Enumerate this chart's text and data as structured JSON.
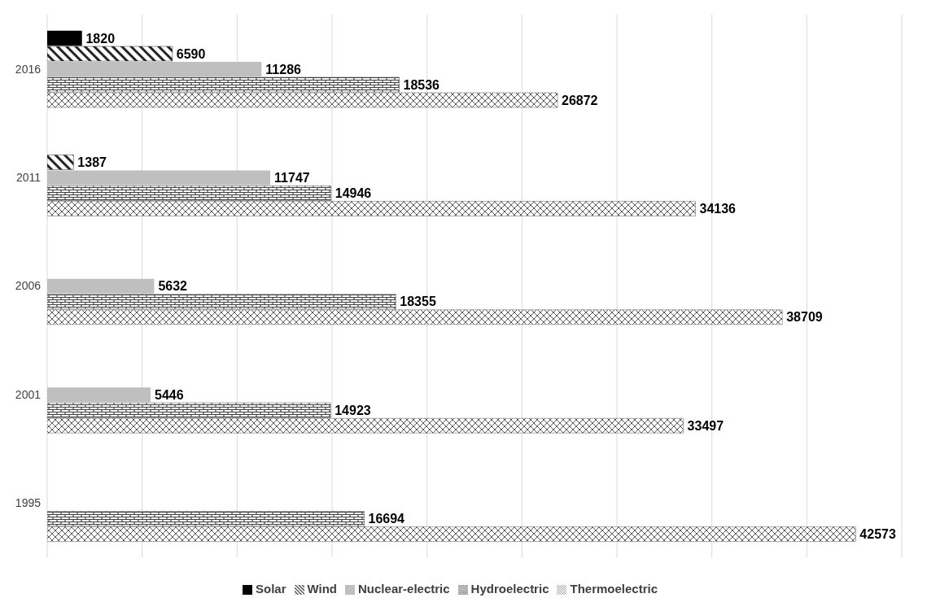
{
  "chart_data": {
    "type": "bar",
    "orientation": "horizontal",
    "categories": [
      "2016",
      "2011",
      "2006",
      "2001",
      "1995"
    ],
    "series": [
      {
        "name": "Solar",
        "color": "#000000",
        "values": [
          1820,
          null,
          null,
          null,
          null
        ]
      },
      {
        "name": "Wind",
        "color": "#262626",
        "values": [
          6590,
          1387,
          null,
          null,
          null
        ]
      },
      {
        "name": "Nuclear-electric",
        "color": "#bfbfbf",
        "values": [
          11286,
          11747,
          5632,
          5446,
          null
        ]
      },
      {
        "name": "Hydroelectric",
        "color": "#404040",
        "values": [
          18536,
          14946,
          18355,
          14923,
          16694
        ]
      },
      {
        "name": "Thermoelectric",
        "color": "#595959",
        "values": [
          26872,
          34136,
          38709,
          33497,
          42573
        ]
      }
    ],
    "grid": "x",
    "tick_labels": "y",
    "legend": "bottom",
    "data_labels": true
  }
}
